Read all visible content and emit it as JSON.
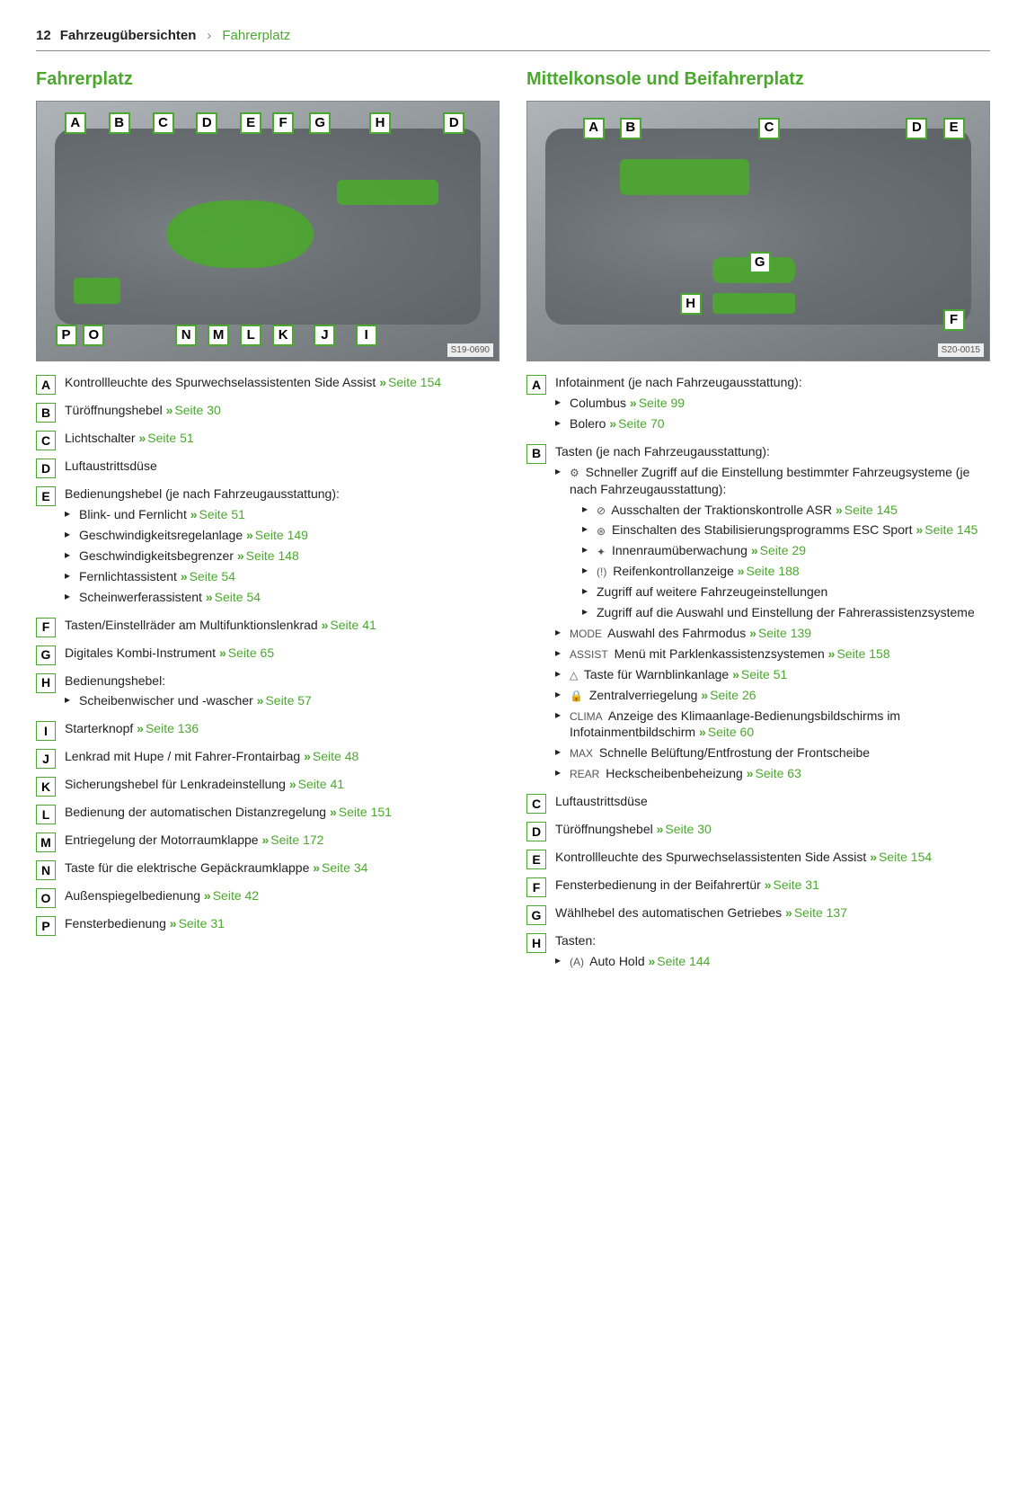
{
  "header": {
    "page_number": "12",
    "chapter": "Fahrzeugübersichten",
    "section": "Fahrerplatz"
  },
  "colors": {
    "accent": "#4ba82e",
    "text": "#222222",
    "bg": "#ffffff",
    "diagram_bg_from": "#aeb4b8",
    "diagram_bg_to": "#6d7377"
  },
  "left": {
    "title": "Fahrerplatz",
    "image_id": "S19-0690",
    "callouts_top": [
      "A",
      "B",
      "C",
      "D",
      "E",
      "F",
      "G",
      "H",
      "D"
    ],
    "callouts_bottom": [
      "P",
      "O",
      "N",
      "M",
      "L",
      "K",
      "J",
      "I"
    ],
    "items": [
      {
        "letter": "A",
        "text": "Kontrollleuchte des Spurwechselassistenten Side Assist",
        "page": "154"
      },
      {
        "letter": "B",
        "text": "Türöffnungshebel",
        "page": "30"
      },
      {
        "letter": "C",
        "text": "Lichtschalter",
        "page": "51"
      },
      {
        "letter": "D",
        "text": "Luftaustrittsdüse"
      },
      {
        "letter": "E",
        "text": "Bedienungshebel (je nach Fahrzeugausstattung):",
        "sub": [
          {
            "text": "Blink- und Fernlicht",
            "page": "51"
          },
          {
            "text": "Geschwindigkeitsregelanlage",
            "page": "149"
          },
          {
            "text": "Geschwindigkeitsbegrenzer",
            "page": "148"
          },
          {
            "text": "Fernlichtassistent",
            "page": "54"
          },
          {
            "text": "Scheinwerferassistent",
            "page": "54"
          }
        ]
      },
      {
        "letter": "F",
        "text": "Tasten/Einstellräder am Multifunktionslenkrad",
        "page": "41"
      },
      {
        "letter": "G",
        "text": "Digitales Kombi-Instrument",
        "page": "65"
      },
      {
        "letter": "H",
        "text": "Bedienungshebel:",
        "sub": [
          {
            "text": "Scheibenwischer und -wascher",
            "page": "57"
          }
        ]
      },
      {
        "letter": "I",
        "text": "Starterknopf",
        "page": "136"
      },
      {
        "letter": "J",
        "text": "Lenkrad mit Hupe / mit Fahrer-Frontairbag",
        "page": "48"
      },
      {
        "letter": "K",
        "text": "Sicherungshebel für Lenkradeinstellung",
        "page": "41"
      },
      {
        "letter": "L",
        "text": "Bedienung der automatischen Distanzregelung",
        "page": "151"
      },
      {
        "letter": "M",
        "text": "Entriegelung der Motorraumklappe",
        "page": "172"
      },
      {
        "letter": "N",
        "text": "Taste für die elektrische Gepäckraumklappe",
        "page": "34"
      },
      {
        "letter": "O",
        "text": "Außenspiegelbedienung",
        "page": "42"
      },
      {
        "letter": "P",
        "text": "Fensterbedienung",
        "page": "31"
      }
    ]
  },
  "right": {
    "title": "Mittelkonsole und Beifahrerplatz",
    "image_id": "S20-0015",
    "callouts_top": [
      "A",
      "B",
      "C",
      "D",
      "E"
    ],
    "callouts_mid": [
      "G",
      "H",
      "F"
    ],
    "items": [
      {
        "letter": "A",
        "text": "Infotainment (je nach Fahrzeugausstattung):",
        "sub": [
          {
            "text": "Columbus",
            "page": "99"
          },
          {
            "text": "Bolero",
            "page": "70"
          }
        ]
      },
      {
        "letter": "B",
        "text": "Tasten (je nach Fahrzeugausstattung):",
        "sub": [
          {
            "icon": "car-set-icon",
            "text": "Schneller Zugriff auf die Einstellung bestimmter Fahrzeugsysteme (je nach Fahrzeugausstattung):",
            "sub": [
              {
                "icon": "asr-off-icon",
                "text": "Ausschalten der Traktionskontrolle ASR",
                "page": "145"
              },
              {
                "icon": "esc-icon",
                "text": "Einschalten des Stabilisierungsprogramms ESC Sport",
                "page": "145"
              },
              {
                "icon": "interior-icon",
                "text": "Innenraumüberwachung",
                "page": "29"
              },
              {
                "icon": "tpms-icon",
                "text": "Reifenkontrollanzeige",
                "page": "188"
              },
              {
                "text": "Zugriff auf weitere Fahrzeugeinstellungen"
              },
              {
                "text": "Zugriff auf die Auswahl und Einstellung der Fahrerassistenzsysteme"
              }
            ]
          },
          {
            "icon": "mode-icon",
            "text": "Auswahl des Fahrmodus",
            "page": "139"
          },
          {
            "icon": "assist-icon",
            "text": "Menü mit Parklenkassistenzsystemen",
            "page": "158"
          },
          {
            "icon": "hazard-icon",
            "text": "Taste für Warnblinkanlage",
            "page": "51"
          },
          {
            "icon": "lock-icon",
            "text": "Zentralverriegelung",
            "page": "26"
          },
          {
            "icon": "clima-icon",
            "text": "Anzeige des Klimaanlage-Bedienungsbildschirms im Infotainmentbildschirm",
            "page": "60"
          },
          {
            "icon": "defrost-front-icon",
            "text": "Schnelle Belüftung/Entfrostung der Frontscheibe"
          },
          {
            "icon": "defrost-rear-icon",
            "text": "Heckscheibenbeheizung",
            "page": "63"
          }
        ]
      },
      {
        "letter": "C",
        "text": "Luftaustrittsdüse"
      },
      {
        "letter": "D",
        "text": "Türöffnungshebel",
        "page": "30"
      },
      {
        "letter": "E",
        "text": "Kontrollleuchte des Spurwechselassistenten Side Assist",
        "page": "154"
      },
      {
        "letter": "F",
        "text": "Fensterbedienung in der Beifahrertür",
        "page": "31"
      },
      {
        "letter": "G",
        "text": "Wählhebel des automatischen Getriebes",
        "page": "137"
      },
      {
        "letter": "H",
        "text": "Tasten:",
        "sub": [
          {
            "icon": "autohold-icon",
            "text": "Auto Hold",
            "page": "144"
          }
        ]
      }
    ]
  },
  "link_prefix": "Seite",
  "icons": {
    "car-set-icon": "⚙",
    "asr-off-icon": "⊘",
    "esc-icon": "⊛",
    "interior-icon": "✦",
    "tpms-icon": "(!)",
    "mode-icon": "MODE",
    "assist-icon": "ASSIST",
    "hazard-icon": "△",
    "lock-icon": "🔒",
    "clima-icon": "CLIMA",
    "defrost-front-icon": "MAX",
    "defrost-rear-icon": "REAR",
    "autohold-icon": "(A)"
  }
}
